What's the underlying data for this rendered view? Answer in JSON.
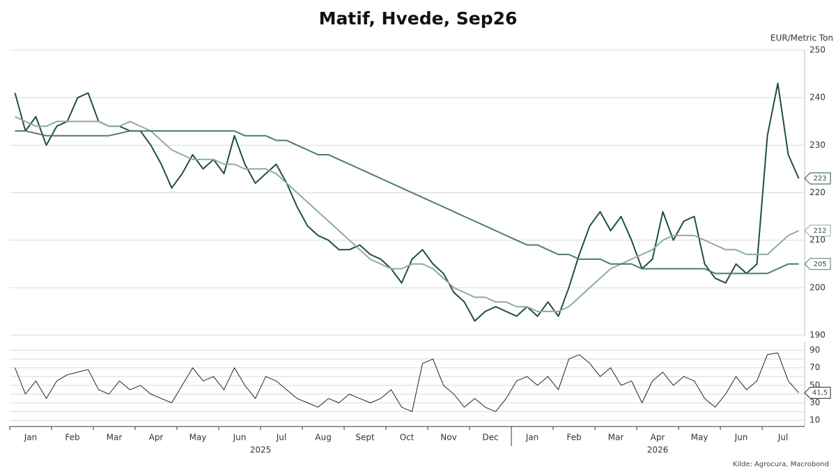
{
  "chart_data": [
    {
      "type": "line",
      "title": "Matif, Hvede, Sep26",
      "y_axis_label": "EUR/Metric Ton",
      "source": "Kilde: Agrocura, Macrobond",
      "categories": [
        "Jan",
        null,
        null,
        null,
        "Feb",
        null,
        null,
        null,
        "Mar",
        null,
        null,
        null,
        "Apr",
        null,
        null,
        null,
        "May",
        null,
        null,
        null,
        "Jun",
        null,
        null,
        null,
        "Jul",
        null,
        null,
        null,
        "Aug",
        null,
        null,
        null,
        "Sept",
        null,
        null,
        null,
        "Oct",
        null,
        null,
        null,
        "Nov",
        null,
        null,
        null,
        "Dec",
        null,
        null,
        null,
        "Jan",
        null,
        null,
        null,
        "Feb",
        null,
        null,
        null,
        "Mar",
        null,
        null,
        null,
        "Apr",
        null,
        null,
        null,
        "May",
        null,
        null,
        null,
        "Jun",
        null,
        null,
        null,
        "Jul",
        null,
        null,
        null
      ],
      "year_labels": [
        "2025",
        "2026"
      ],
      "series": [
        {
          "color": "#1d4f3c",
          "width": 2,
          "values": [
            241,
            233,
            236,
            230,
            234,
            235,
            240,
            241,
            235,
            234,
            234,
            233,
            233,
            230,
            226,
            221,
            224,
            228,
            225,
            227,
            224,
            232,
            226,
            222,
            224,
            226,
            222,
            217,
            213,
            211,
            210,
            208,
            208,
            209,
            207,
            206,
            204,
            201,
            206,
            208,
            205,
            203,
            199,
            197,
            193,
            195,
            196,
            195,
            194,
            196,
            194,
            197,
            194,
            200,
            207,
            213,
            216,
            212,
            215,
            210,
            204,
            206,
            216,
            210,
            214,
            215,
            205,
            202,
            201,
            205,
            203,
            205,
            232,
            243,
            228,
            223
          ]
        },
        {
          "color": "#8fa9a6",
          "width": 2,
          "values": [
            236,
            235,
            234,
            234,
            235,
            235,
            235,
            235,
            235,
            234,
            234,
            235,
            234,
            233,
            231,
            229,
            228,
            227,
            227,
            227,
            226,
            226,
            225,
            225,
            225,
            224,
            222,
            220,
            218,
            216,
            214,
            212,
            210,
            208,
            206,
            205,
            204,
            204,
            205,
            205,
            204,
            202,
            200,
            199,
            198,
            198,
            197,
            197,
            196,
            196,
            195,
            195,
            195,
            196,
            198,
            200,
            202,
            204,
            205,
            206,
            207,
            208,
            210,
            211,
            211,
            211,
            210,
            209,
            208,
            208,
            207,
            207,
            207,
            209,
            211,
            212
          ]
        },
        {
          "color": "#4e7a66",
          "width": 2,
          "values": [
            233,
            233,
            232.5,
            232,
            232,
            232,
            232,
            232,
            232,
            232,
            232.5,
            233,
            233,
            233,
            233,
            233,
            233,
            233,
            233,
            233,
            233,
            233,
            232,
            232,
            232,
            231,
            231,
            230,
            229,
            228,
            228,
            227,
            226,
            225,
            224,
            223,
            222,
            221,
            220,
            219,
            218,
            217,
            216,
            215,
            214,
            213,
            212,
            211,
            210,
            209,
            209,
            208,
            207,
            207,
            206,
            206,
            206,
            205,
            205,
            205,
            204,
            204,
            204,
            204,
            204,
            204,
            204,
            203,
            203,
            203,
            203,
            203,
            203,
            204,
            205,
            205
          ]
        }
      ],
      "ylim": [
        190,
        250
      ],
      "yticks": [
        190,
        200,
        210,
        220,
        230,
        240,
        250
      ],
      "grid": true,
      "end_labels": true
    },
    {
      "type": "line",
      "series": [
        {
          "color": "#222222",
          "width": 1,
          "end_label": "41,5",
          "values": [
            70,
            40,
            55,
            35,
            55,
            62,
            65,
            68,
            45,
            40,
            55,
            45,
            50,
            40,
            35,
            30,
            50,
            70,
            55,
            60,
            45,
            70,
            50,
            35,
            60,
            55,
            45,
            35,
            30,
            25,
            35,
            30,
            40,
            35,
            30,
            35,
            45,
            25,
            20,
            75,
            80,
            50,
            40,
            25,
            35,
            25,
            20,
            35,
            55,
            60,
            50,
            60,
            45,
            80,
            85,
            75,
            60,
            70,
            50,
            55,
            30,
            55,
            65,
            50,
            60,
            55,
            35,
            25,
            40,
            60,
            45,
            55,
            85,
            87,
            55,
            41.5
          ]
        }
      ],
      "ylim": [
        3,
        100
      ],
      "yticks": [
        10,
        30,
        50,
        70,
        90
      ],
      "minor_yticks": [
        20,
        40,
        60,
        80
      ],
      "grid": true,
      "end_labels": true
    }
  ]
}
